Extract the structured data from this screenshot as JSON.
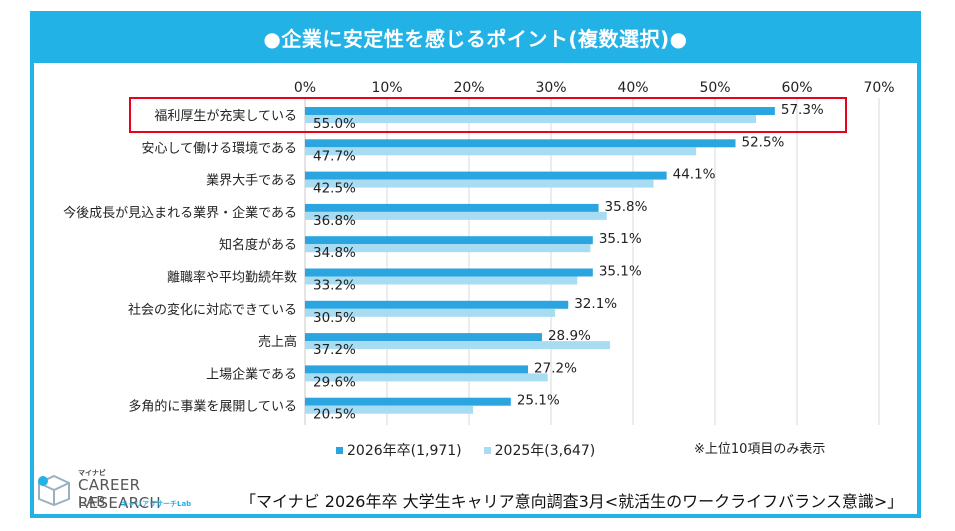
{
  "header": {
    "title": "●企業に安定性を感じるポイント(複数選択)●"
  },
  "colors": {
    "accent": "#22b2e6",
    "series_2026": "#2aa5e0",
    "series_2025": "#a8dcf2",
    "highlight": "#e8001c"
  },
  "chart_data": {
    "type": "bar",
    "orientation": "horizontal",
    "title": "●企業に安定性を感じるポイント(複数選択)●",
    "categories": [
      "福利厚生が充実している",
      "安心して働ける環境である",
      "業界大手である",
      "今後成長が見込まれる業界・企業である",
      "知名度がある",
      "離職率や平均勤続年数",
      "社会の変化に対応できている",
      "売上高",
      "上場企業である",
      "多角的に事業を展開している"
    ],
    "series": [
      {
        "name": "2026年卒(1,971)",
        "values": [
          57.3,
          52.5,
          44.1,
          35.8,
          35.1,
          35.1,
          32.1,
          28.9,
          27.2,
          25.1
        ],
        "labels": [
          "57.3%",
          "52.5%",
          "44.1%",
          "35.8%",
          "35.1%",
          "35.1%",
          "32.1%",
          "28.9%",
          "27.2%",
          "25.1%"
        ]
      },
      {
        "name": "2025年(3,647)",
        "values": [
          55.0,
          47.7,
          42.5,
          36.8,
          34.8,
          33.2,
          30.5,
          37.2,
          29.6,
          20.5
        ],
        "labels": [
          "55.0%",
          "47.7%",
          "42.5%",
          "36.8%",
          "34.8%",
          "33.2%",
          "30.5%",
          "37.2%",
          "29.6%",
          "20.5%"
        ]
      }
    ],
    "xlim": [
      0,
      70
    ],
    "ticks": [
      "0%",
      "10%",
      "20%",
      "30%",
      "40%",
      "50%",
      "60%",
      "70%"
    ],
    "grid": true,
    "legend_position": "bottom",
    "highlighted_category": "福利厚生が充実している"
  },
  "legend": {
    "item_2026": "2026年卒(1,971)",
    "item_2025": "2025年(3,647)"
  },
  "note": "※上位10項目のみ表示",
  "logo": {
    "kana": "マイナビ",
    "line1": "CAREER RESEARCH",
    "line2": "LAB",
    "sub": "キャリアリサーチLab"
  },
  "source": "「マイナビ 2026年卒 大学生キャリア意向調査3月<就活生のワークライフバランス意識>」"
}
